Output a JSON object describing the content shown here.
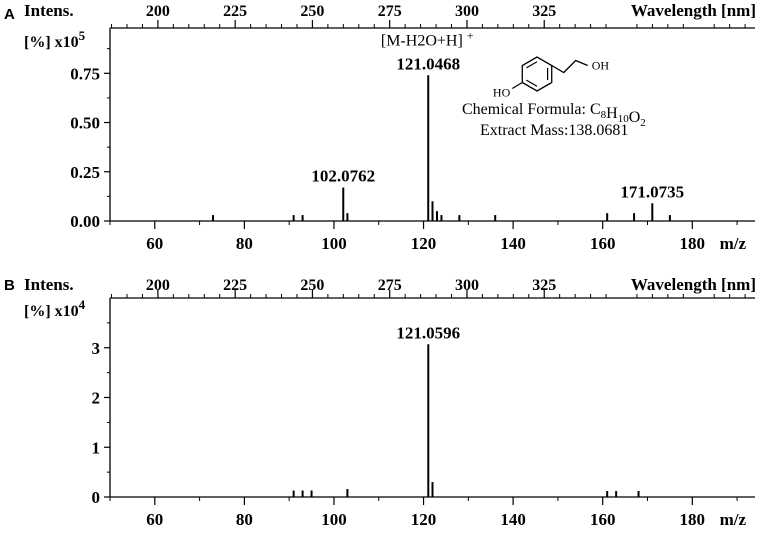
{
  "chart_data": [
    {
      "type": "bar",
      "panel": "A",
      "ylabel": "Intens.",
      "yunit": "[%]",
      "yscale_base": "x10",
      "yscale_exp": "5",
      "top_axis_label": "Wavelength [nm]",
      "top_axis_ticks": [
        200,
        225,
        250,
        275,
        300,
        325
      ],
      "top_axis_tick_labels": [
        "200",
        "225",
        "250",
        "275",
        "300",
        "325"
      ],
      "xlabel": "m/z",
      "xlim": [
        50,
        194
      ],
      "ylim": [
        0,
        0.98
      ],
      "x_ticks": [
        60,
        80,
        100,
        120,
        140,
        160,
        180
      ],
      "x_tick_labels": [
        "60",
        "80",
        "100",
        "120",
        "140",
        "160",
        "180"
      ],
      "y_ticks": [
        0.0,
        0.25,
        0.5,
        0.75
      ],
      "y_tick_labels": [
        "0.00",
        "0.25",
        "0.50",
        "0.75"
      ],
      "peaks": [
        {
          "mz": 73.0,
          "intensity": 0.03
        },
        {
          "mz": 91.0,
          "intensity": 0.03
        },
        {
          "mz": 93.0,
          "intensity": 0.03
        },
        {
          "mz": 102.0762,
          "intensity": 0.17,
          "label": "102.0762"
        },
        {
          "mz": 103.0,
          "intensity": 0.04
        },
        {
          "mz": 121.0468,
          "intensity": 0.74,
          "label": "121.0468",
          "annotation": "[M-H2O+H]",
          "annotation_superscript": "+"
        },
        {
          "mz": 122.0,
          "intensity": 0.1
        },
        {
          "mz": 123.0,
          "intensity": 0.05
        },
        {
          "mz": 124.0,
          "intensity": 0.03
        },
        {
          "mz": 128.0,
          "intensity": 0.03
        },
        {
          "mz": 136.0,
          "intensity": 0.03
        },
        {
          "mz": 161.0,
          "intensity": 0.04
        },
        {
          "mz": 167.0,
          "intensity": 0.04
        },
        {
          "mz": 171.0735,
          "intensity": 0.09,
          "label": "171.0735"
        },
        {
          "mz": 175.0,
          "intensity": 0.03
        }
      ],
      "structure": {
        "substituent_left": "HO",
        "substituent_right": "OH",
        "formula_label": "Chemical Formula: ",
        "formula": [
          {
            "t": "C",
            "sub": "8"
          },
          {
            "t": "H",
            "sub": "10"
          },
          {
            "t": "O",
            "sub": "2"
          }
        ],
        "mass_label": "Extract Mass:138.0681"
      }
    },
    {
      "type": "bar",
      "panel": "B",
      "ylabel": "Intens.",
      "yunit": "[%]",
      "yscale_base": "x10",
      "yscale_exp": "4",
      "top_axis_label": "Wavelength [nm]",
      "top_axis_ticks": [
        200,
        225,
        250,
        275,
        300,
        325
      ],
      "top_axis_tick_labels": [
        "200",
        "225",
        "250",
        "275",
        "300",
        "325"
      ],
      "xlabel": "m/z",
      "xlim": [
        50,
        194
      ],
      "ylim": [
        0,
        4.0
      ],
      "x_ticks": [
        60,
        80,
        100,
        120,
        140,
        160,
        180
      ],
      "x_tick_labels": [
        "60",
        "80",
        "100",
        "120",
        "140",
        "160",
        "180"
      ],
      "y_ticks": [
        0,
        1,
        2,
        3
      ],
      "y_tick_labels": [
        "0",
        "1",
        "2",
        "3"
      ],
      "peaks": [
        {
          "mz": 91.0,
          "intensity": 0.13
        },
        {
          "mz": 93.0,
          "intensity": 0.13
        },
        {
          "mz": 95.0,
          "intensity": 0.13
        },
        {
          "mz": 103.0,
          "intensity": 0.16
        },
        {
          "mz": 121.0596,
          "intensity": 3.07,
          "label": "121.0596"
        },
        {
          "mz": 122.0,
          "intensity": 0.3
        },
        {
          "mz": 161.0,
          "intensity": 0.12
        },
        {
          "mz": 163.0,
          "intensity": 0.12
        },
        {
          "mz": 168.0,
          "intensity": 0.12
        }
      ]
    }
  ]
}
